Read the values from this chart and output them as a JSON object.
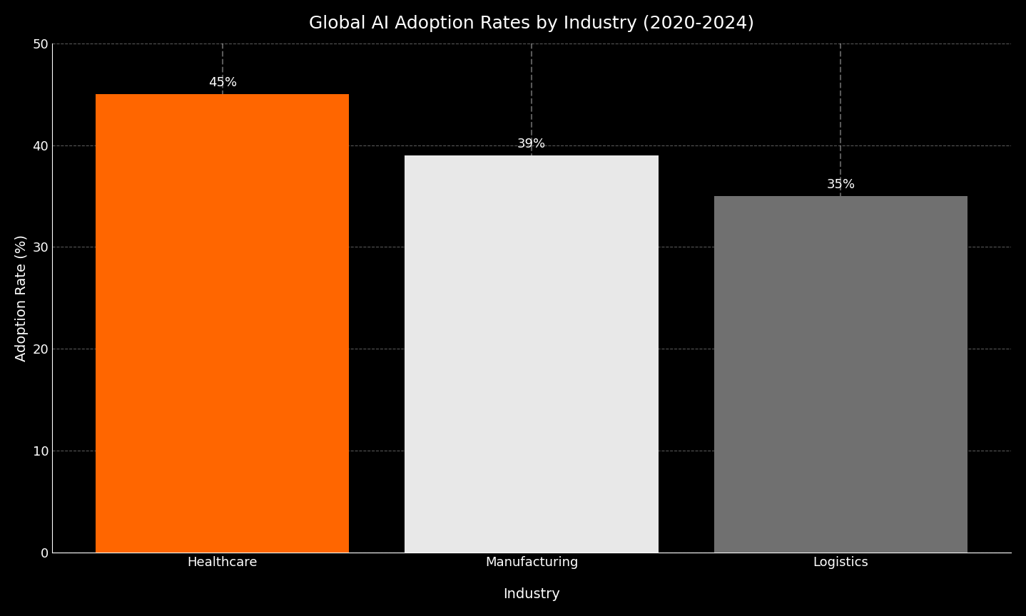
{
  "title": "Global AI Adoption Rates by Industry (2020-2024)",
  "categories": [
    "Healthcare",
    "Manufacturing\n",
    "Logistics"
  ],
  "values": [
    45,
    39,
    35
  ],
  "bar_colors": [
    "#FF6600",
    "#E8E8E8",
    "#707070"
  ],
  "xlabel": "Industry",
  "ylabel": "Adoption Rate (%)",
  "ylim": [
    0,
    50
  ],
  "yticks": [
    0,
    10,
    20,
    30,
    40,
    50
  ],
  "background_color": "#000000",
  "text_color": "#FFFFFF",
  "grid_color": "#FFFFFF",
  "title_fontsize": 18,
  "label_fontsize": 14,
  "tick_fontsize": 13,
  "annotation_fontsize": 13,
  "bar_width": 0.82
}
